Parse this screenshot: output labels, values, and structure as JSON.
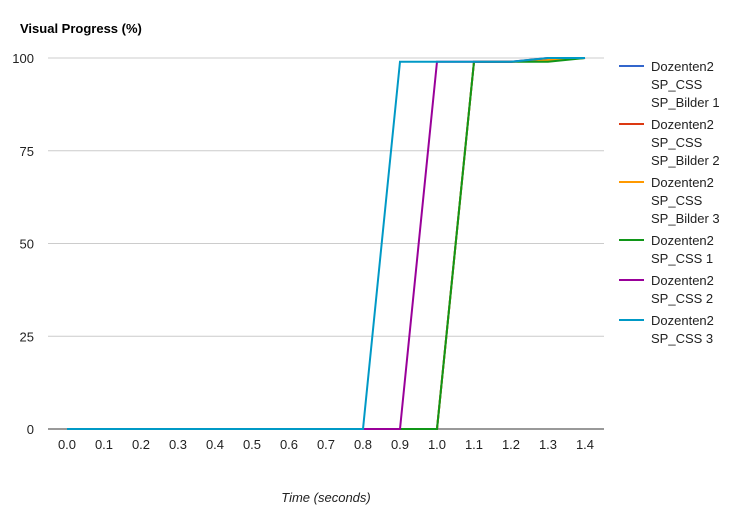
{
  "chart_data": {
    "type": "line",
    "title": "Visual Progress (%)",
    "xlabel": "Time (seconds)",
    "ylabel": "",
    "xlim": [
      0.0,
      1.4
    ],
    "ylim": [
      0,
      100
    ],
    "x_ticks": [
      "0.0",
      "0.1",
      "0.2",
      "0.3",
      "0.4",
      "0.5",
      "0.6",
      "0.7",
      "0.8",
      "0.9",
      "1.0",
      "1.1",
      "1.2",
      "1.3",
      "1.4"
    ],
    "y_ticks": [
      "0",
      "25",
      "50",
      "75",
      "100"
    ],
    "grid": true,
    "legend_position": "right",
    "series": [
      {
        "name": "Dozenten2 SP_CSS SP_Bilder 1",
        "legend_lines": [
          "Dozenten2",
          "SP_CSS",
          "SP_Bilder 1"
        ],
        "color": "#3366cc",
        "points": [
          [
            0.0,
            0
          ],
          [
            1.0,
            0
          ],
          [
            1.1,
            99
          ],
          [
            1.2,
            99
          ],
          [
            1.3,
            99.5
          ],
          [
            1.4,
            100
          ]
        ]
      },
      {
        "name": "Dozenten2 SP_CSS SP_Bilder 2",
        "legend_lines": [
          "Dozenten2",
          "SP_CSS",
          "SP_Bilder 2"
        ],
        "color": "#dc3912",
        "points": [
          [
            0.0,
            0
          ],
          [
            1.0,
            0
          ],
          [
            1.1,
            99
          ],
          [
            1.2,
            99
          ],
          [
            1.3,
            99.5
          ],
          [
            1.4,
            100
          ]
        ]
      },
      {
        "name": "Dozenten2 SP_CSS SP_Bilder 3",
        "legend_lines": [
          "Dozenten2",
          "SP_CSS",
          "SP_Bilder 3"
        ],
        "color": "#ff9900",
        "points": [
          [
            0.0,
            0
          ],
          [
            1.0,
            0
          ],
          [
            1.1,
            99
          ],
          [
            1.2,
            99
          ],
          [
            1.3,
            99.5
          ],
          [
            1.4,
            100
          ]
        ]
      },
      {
        "name": "Dozenten2 SP_CSS 1",
        "legend_lines": [
          "Dozenten2",
          "SP_CSS 1"
        ],
        "color": "#109618",
        "points": [
          [
            0.0,
            0
          ],
          [
            1.0,
            0
          ],
          [
            1.1,
            99
          ],
          [
            1.2,
            99
          ],
          [
            1.3,
            99
          ],
          [
            1.4,
            100
          ]
        ]
      },
      {
        "name": "Dozenten2 SP_CSS 2",
        "legend_lines": [
          "Dozenten2",
          "SP_CSS 2"
        ],
        "color": "#990099",
        "points": [
          [
            0.0,
            0
          ],
          [
            0.9,
            0
          ],
          [
            1.0,
            99
          ],
          [
            1.1,
            99
          ],
          [
            1.2,
            99
          ],
          [
            1.3,
            100
          ],
          [
            1.4,
            100
          ]
        ]
      },
      {
        "name": "Dozenten2 SP_CSS 3",
        "legend_lines": [
          "Dozenten2",
          "SP_CSS 3"
        ],
        "color": "#0099c6",
        "points": [
          [
            0.0,
            0
          ],
          [
            0.8,
            0
          ],
          [
            0.9,
            99
          ],
          [
            1.0,
            99
          ],
          [
            1.1,
            99
          ],
          [
            1.2,
            99
          ],
          [
            1.3,
            100
          ],
          [
            1.4,
            100
          ]
        ]
      }
    ]
  }
}
